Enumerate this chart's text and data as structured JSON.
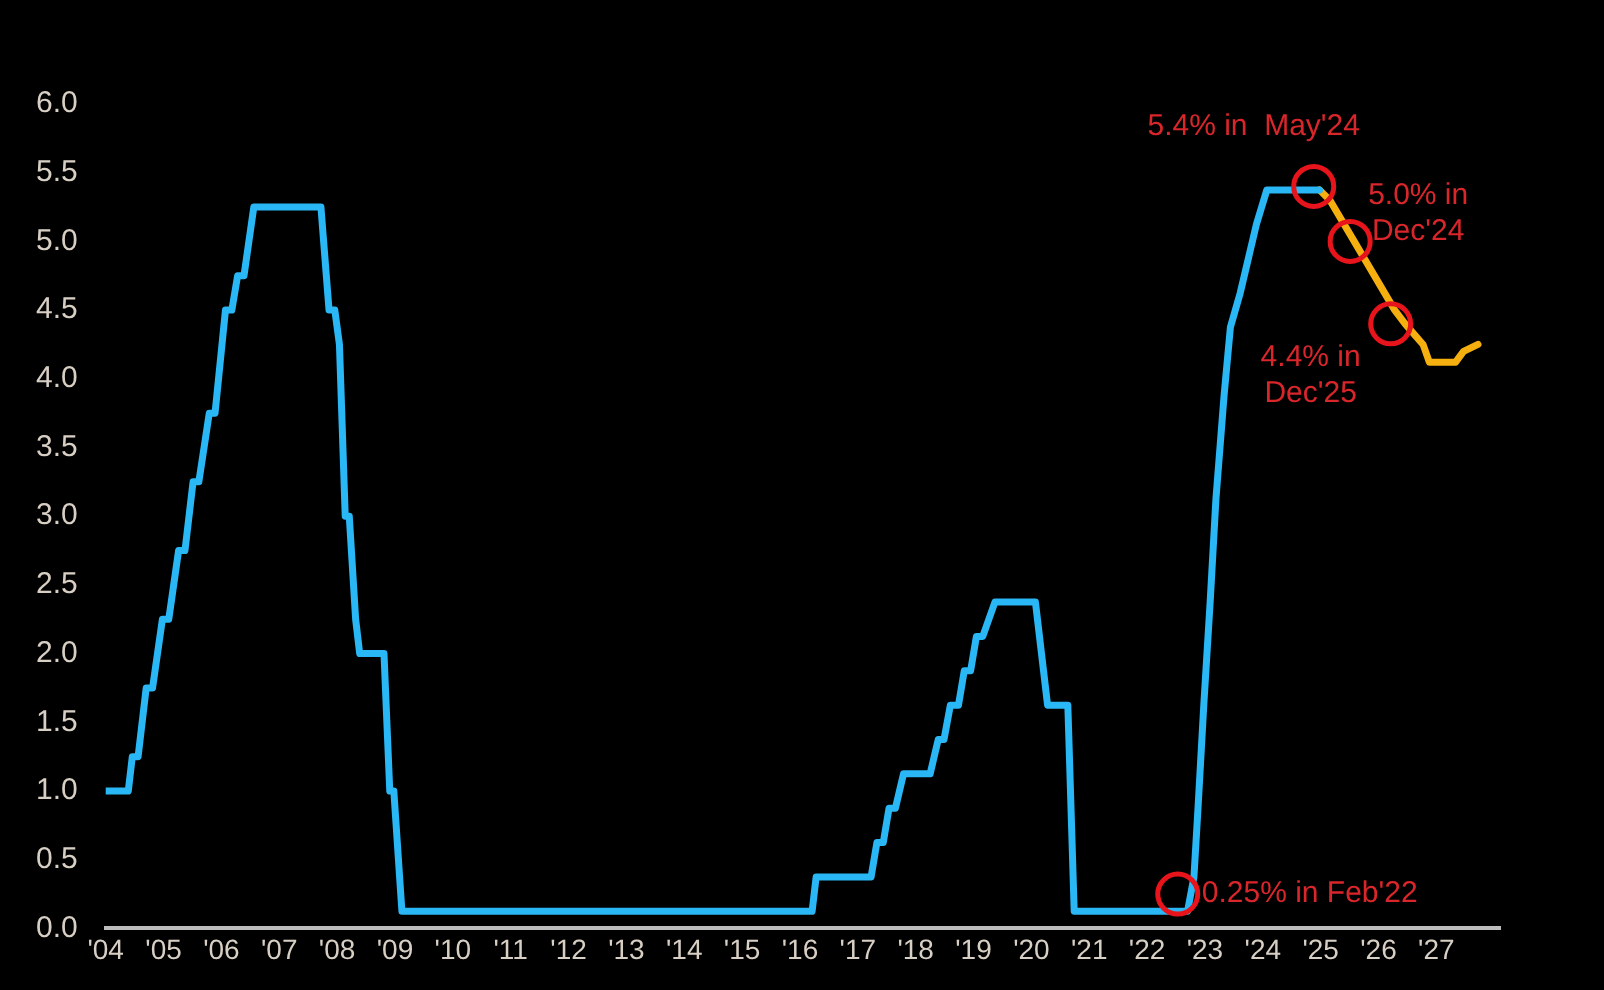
{
  "chart_data": {
    "type": "line",
    "marker": "none",
    "xlim": [
      2004,
      2028.1
    ],
    "ylim": [
      0,
      6
    ],
    "xticks": [
      {
        "value": 2004,
        "label": "'04"
      },
      {
        "value": 2005,
        "label": "'05"
      },
      {
        "value": 2006,
        "label": "'06"
      },
      {
        "value": 2007,
        "label": "'07"
      },
      {
        "value": 2008,
        "label": "'08"
      },
      {
        "value": 2009,
        "label": "'09"
      },
      {
        "value": 2010,
        "label": "'10"
      },
      {
        "value": 2011,
        "label": "'11"
      },
      {
        "value": 2012,
        "label": "'12"
      },
      {
        "value": 2013,
        "label": "'13"
      },
      {
        "value": 2014,
        "label": "'14"
      },
      {
        "value": 2015,
        "label": "'15"
      },
      {
        "value": 2016,
        "label": "'16"
      },
      {
        "value": 2017,
        "label": "'17"
      },
      {
        "value": 2018,
        "label": "'18"
      },
      {
        "value": 2019,
        "label": "'19"
      },
      {
        "value": 2020,
        "label": "'20"
      },
      {
        "value": 2021,
        "label": "'21"
      },
      {
        "value": 2022,
        "label": "'22"
      },
      {
        "value": 2023,
        "label": "'23"
      },
      {
        "value": 2024,
        "label": "'24"
      },
      {
        "value": 2025,
        "label": "'25"
      },
      {
        "value": 2026,
        "label": "'26"
      },
      {
        "value": 2027,
        "label": "'27"
      }
    ],
    "yticks": [
      {
        "value": 0,
        "label": "0.0"
      },
      {
        "value": 0.5,
        "label": "0.5"
      },
      {
        "value": 1,
        "label": "1.0"
      },
      {
        "value": 1.5,
        "label": "1.5"
      },
      {
        "value": 2,
        "label": "2.0"
      },
      {
        "value": 2.5,
        "label": "2.5"
      },
      {
        "value": 3,
        "label": "3.0"
      },
      {
        "value": 3.5,
        "label": "3.5"
      },
      {
        "value": 4,
        "label": "4.0"
      },
      {
        "value": 4.5,
        "label": "4.5"
      },
      {
        "value": 5,
        "label": "5.0"
      },
      {
        "value": 5.5,
        "label": "5.5"
      },
      {
        "value": 6,
        "label": "6.0"
      }
    ],
    "series": [
      {
        "color": "#2ab7f5",
        "x": [
          2004,
          2004.39,
          2004.46,
          2004.56,
          2004.7,
          2004.81,
          2004.98,
          2005.09,
          2005.26,
          2005.37,
          2005.51,
          2005.61,
          2005.79,
          2005.89,
          2006.07,
          2006.18,
          2006.28,
          2006.39,
          2006.56,
          2007.72,
          2007.86,
          2007.96,
          2008.04,
          2008.14,
          2008.21,
          2008.32,
          2008.39,
          2008.81,
          2008.91,
          2008.98,
          2009.12,
          2016.21,
          2016.28,
          2017.23,
          2017.33,
          2017.44,
          2017.54,
          2017.65,
          2017.79,
          2018.25,
          2018.39,
          2018.49,
          2018.6,
          2018.74,
          2018.84,
          2018.95,
          2019.05,
          2019.16,
          2019.37,
          2020.07,
          2020.28,
          2020.63,
          2020.74,
          2022.7,
          2022.81,
          2022.88,
          2022.98,
          2023.09,
          2023.19,
          2023.33,
          2023.44,
          2023.61,
          2023.75,
          2023.89,
          2024.07,
          2024.98
        ],
        "values": [
          1,
          1,
          1.25,
          1.25,
          1.75,
          1.75,
          2.25,
          2.25,
          2.75,
          2.75,
          3.25,
          3.25,
          3.75,
          3.75,
          4.5,
          4.5,
          4.75,
          4.75,
          5.25,
          5.25,
          4.5,
          4.5,
          4.25,
          3,
          3,
          2.25,
          2,
          2,
          1,
          1,
          0.125,
          0.125,
          0.375,
          0.375,
          0.625,
          0.625,
          0.875,
          0.875,
          1.125,
          1.125,
          1.375,
          1.375,
          1.625,
          1.625,
          1.875,
          1.875,
          2.125,
          2.125,
          2.375,
          2.375,
          1.625,
          1.625,
          0.125,
          0.125,
          0.375,
          0.875,
          1.625,
          2.375,
          3.125,
          3.875,
          4.375,
          4.625,
          4.875,
          5.125,
          5.375,
          5.375
        ]
      },
      {
        "color": "#f5b00f",
        "x": [
          2024.98,
          2025.16,
          2025.58,
          2026.0,
          2026.28,
          2026.46,
          2026.77,
          2026.88,
          2027.33,
          2027.47,
          2027.72
        ],
        "values": [
          5.375,
          5.3,
          5.0,
          4.7,
          4.5,
          4.4,
          4.25,
          4.12,
          4.12,
          4.2,
          4.25
        ]
      }
    ],
    "annotations": [
      {
        "text": "5.4% in  May'24",
        "x": 2024.88,
        "y": 5.4
      },
      {
        "text": "5.0% in\nDec'24",
        "x": 2025.51,
        "y": 5.0
      },
      {
        "text": "4.4% in\nDec'25",
        "x": 2026.21,
        "y": 4.4
      },
      {
        "text": "0.25% in Feb'22",
        "x": 2022.53,
        "y": 0.25
      }
    ]
  }
}
